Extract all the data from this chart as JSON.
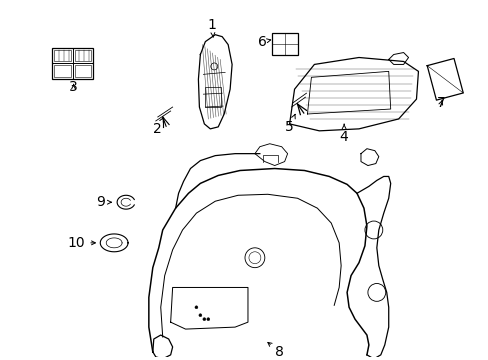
{
  "background_color": "#ffffff",
  "fig_width": 4.89,
  "fig_height": 3.6,
  "dpi": 100,
  "line_color": "#000000",
  "font_size": 9
}
